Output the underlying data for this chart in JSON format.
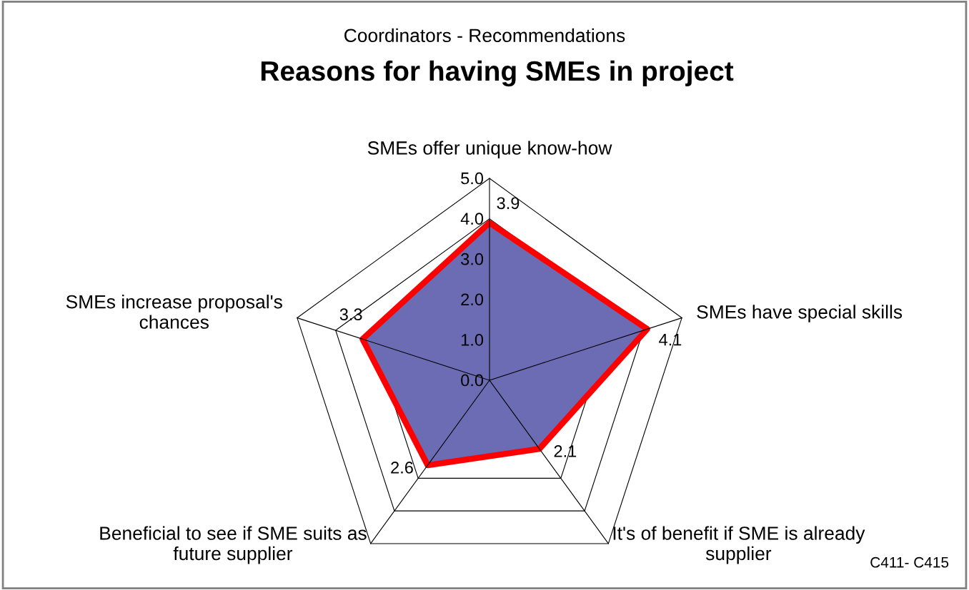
{
  "chart_data": {
    "type": "radar",
    "subtitle": "Coordinators - Recommendations",
    "title": "Reasons for having SMEs in project",
    "categories": [
      "SMEs offer unique know-how",
      "SMEs have special skills",
      "It's of benefit if SME is already\nsupplier",
      "Beneficial to see if SME suits as\nfuture supplier",
      "SMEs increase proposal's\nchances"
    ],
    "series": [
      {
        "color": "#ff0000",
        "values": [
          3.9,
          4.1,
          2.1,
          2.6,
          3.3
        ]
      }
    ],
    "ylim": [
      0,
      5
    ],
    "yticks": [
      {
        "value": 0,
        "label": "0.0"
      },
      {
        "value": 1,
        "label": "1.0"
      },
      {
        "value": 2,
        "label": "2.0"
      },
      {
        "value": 3,
        "label": "3.0"
      },
      {
        "value": 4,
        "label": "4.0"
      },
      {
        "value": 5,
        "label": "5.0"
      }
    ],
    "data_labels": true,
    "annotations": [
      "C411- C415"
    ]
  }
}
